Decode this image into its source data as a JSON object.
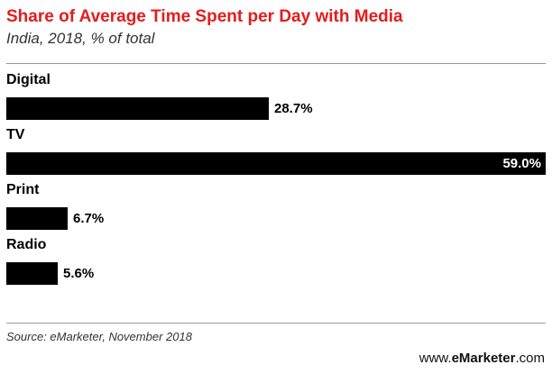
{
  "header": {
    "title": "Share of Average Time Spent per Day with Media",
    "subtitle": "India, 2018, % of total"
  },
  "footer": {
    "source": "Source: eMarketer, November 2018",
    "brand_prefix": "www.",
    "brand_name": "eMarketer",
    "brand_suffix": ".com"
  },
  "colors": {
    "title": "#e31c1c",
    "bar": "#000000"
  },
  "chart_data": {
    "type": "bar",
    "orientation": "horizontal",
    "title": "Share of Average Time Spent per Day with Media",
    "subtitle": "India, 2018, % of total",
    "categories": [
      "Digital",
      "TV",
      "Print",
      "Radio"
    ],
    "values": [
      28.7,
      59.0,
      6.7,
      5.6
    ],
    "value_labels": [
      "28.7%",
      "59.0%",
      "6.7%",
      "5.6%"
    ],
    "unit": "%",
    "xlim": [
      0,
      59.0
    ],
    "grid": false,
    "legend": "none"
  }
}
